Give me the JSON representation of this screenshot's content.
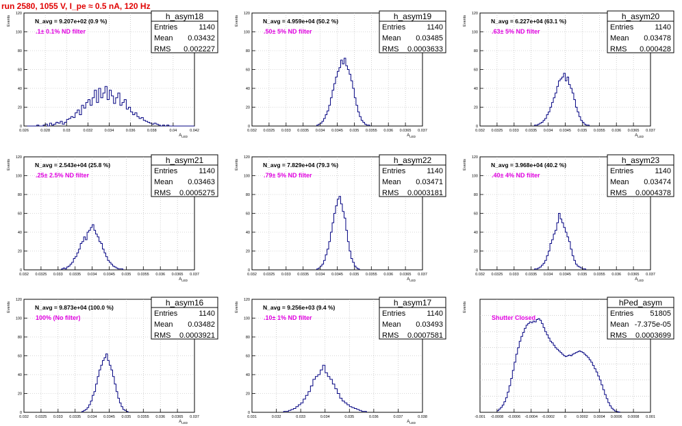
{
  "run_title": "run 2580,  1055 V, I_pe ≈ 0.5 nA, 120 Hz",
  "colors": {
    "title": "#e00000",
    "histogram": "#000080",
    "annotation": "#e000e0",
    "grid": "#b0b0b0",
    "frame": "#000000"
  },
  "chart_data": [
    {
      "type": "histogram",
      "title": "h_asym18",
      "ylabel": "Events",
      "xlabel": "A_LED",
      "grid": true,
      "xlim": [
        0.026,
        0.042
      ],
      "ylim": [
        0,
        120
      ],
      "xticks": [
        {
          "v": 0.026,
          "label": "0.026"
        },
        {
          "v": 0.028,
          "label": "0.028"
        },
        {
          "v": 0.03,
          "label": "0.03"
        },
        {
          "v": 0.032,
          "label": "0.032"
        },
        {
          "v": 0.034,
          "label": "0.034"
        },
        {
          "v": 0.036,
          "label": "0.036"
        },
        {
          "v": 0.038,
          "label": "0.038"
        },
        {
          "v": 0.04,
          "label": "0.04"
        },
        {
          "v": 0.042,
          "label": "0.042"
        }
      ],
      "yticks": [
        0,
        20,
        40,
        60,
        80,
        100,
        120
      ],
      "navg": "N_avg = 9.207e+02 (0.9 %)",
      "annotation": ".1± 0.1% ND filter",
      "stats": {
        "Entries": "1140",
        "Mean": "0.03432",
        "RMS": "0.002227"
      },
      "bins": {
        "start": 0.0262,
        "width": 0.0002,
        "values": [
          0,
          0,
          0,
          0,
          0,
          1,
          0,
          0,
          1,
          2,
          0,
          3,
          1,
          2,
          4,
          3,
          5,
          2,
          4,
          7,
          8,
          10,
          9,
          14,
          17,
          12,
          22,
          19,
          25,
          28,
          22,
          30,
          38,
          25,
          40,
          30,
          35,
          42,
          28,
          38,
          32,
          24,
          30,
          35,
          22,
          25,
          28,
          18,
          20,
          15,
          12,
          14,
          10,
          8,
          9,
          6,
          5,
          4,
          3,
          2,
          3,
          2,
          1,
          0,
          1,
          0,
          1,
          0,
          0,
          0,
          0,
          0,
          0,
          0,
          0,
          0,
          0,
          0,
          0
        ]
      }
    },
    {
      "type": "histogram",
      "title": "h_asym19",
      "ylabel": "Events",
      "xlabel": "A_LED",
      "grid": true,
      "xlim": [
        0.032,
        0.037
      ],
      "ylim": [
        0,
        120
      ],
      "xticks": [
        {
          "v": 0.032,
          "label": "0.032"
        },
        {
          "v": 0.0325,
          "label": "0.0325"
        },
        {
          "v": 0.033,
          "label": "0.033"
        },
        {
          "v": 0.0335,
          "label": "0.0335"
        },
        {
          "v": 0.034,
          "label": "0.034"
        },
        {
          "v": 0.0345,
          "label": "0.0345"
        },
        {
          "v": 0.035,
          "label": "0.035"
        },
        {
          "v": 0.0355,
          "label": "0.0355"
        },
        {
          "v": 0.036,
          "label": "0.036"
        },
        {
          "v": 0.0365,
          "label": "0.0365"
        },
        {
          "v": 0.037,
          "label": "0.037"
        }
      ],
      "yticks": [
        0,
        20,
        40,
        60,
        80,
        100,
        120
      ],
      "navg": "N_avg = 4.959e+04 (50.2 %)",
      "annotation": ".50± 5% ND filter",
      "stats": {
        "Entries": "1140",
        "Mean": "0.03485",
        "RMS": "0.0003633"
      },
      "bins": {
        "start": 0.0339,
        "width": 5e-05,
        "values": [
          1,
          2,
          3,
          5,
          8,
          12,
          16,
          22,
          30,
          38,
          45,
          52,
          58,
          62,
          70,
          66,
          72,
          64,
          60,
          55,
          48,
          40,
          30,
          22,
          15,
          10,
          6,
          4,
          2,
          1,
          1
        ]
      }
    },
    {
      "type": "histogram",
      "title": "h_asym20",
      "ylabel": "Events",
      "xlabel": "A_LED",
      "grid": true,
      "xlim": [
        0.032,
        0.037
      ],
      "ylim": [
        0,
        120
      ],
      "xticks": [
        {
          "v": 0.032,
          "label": "0.032"
        },
        {
          "v": 0.0325,
          "label": "0.0325"
        },
        {
          "v": 0.033,
          "label": "0.033"
        },
        {
          "v": 0.0335,
          "label": "0.0335"
        },
        {
          "v": 0.034,
          "label": "0.034"
        },
        {
          "v": 0.0345,
          "label": "0.0345"
        },
        {
          "v": 0.035,
          "label": "0.035"
        },
        {
          "v": 0.0355,
          "label": "0.0355"
        },
        {
          "v": 0.036,
          "label": "0.036"
        },
        {
          "v": 0.0365,
          "label": "0.0365"
        },
        {
          "v": 0.037,
          "label": "0.037"
        }
      ],
      "yticks": [
        0,
        20,
        40,
        60,
        80,
        100,
        120
      ],
      "navg": "N_avg = 6.227e+04 (63.1 %)",
      "annotation": ".63± 5% ND filter",
      "stats": {
        "Entries": "1140",
        "Mean": "0.03478",
        "RMS": "0.000428"
      },
      "bins": {
        "start": 0.0336,
        "width": 5e-05,
        "values": [
          1,
          1,
          2,
          3,
          4,
          6,
          8,
          12,
          15,
          20,
          25,
          30,
          35,
          42,
          48,
          50,
          52,
          56,
          48,
          52,
          44,
          40,
          35,
          28,
          20,
          15,
          10,
          6,
          4,
          2,
          1,
          1
        ]
      }
    },
    {
      "type": "histogram",
      "title": "h_asym21",
      "ylabel": "Events",
      "xlabel": "A_LED",
      "grid": true,
      "xlim": [
        0.032,
        0.037
      ],
      "ylim": [
        0,
        120
      ],
      "xticks": [
        {
          "v": 0.032,
          "label": "0.032"
        },
        {
          "v": 0.0325,
          "label": "0.0325"
        },
        {
          "v": 0.033,
          "label": "0.033"
        },
        {
          "v": 0.0335,
          "label": "0.0335"
        },
        {
          "v": 0.034,
          "label": "0.034"
        },
        {
          "v": 0.0345,
          "label": "0.0345"
        },
        {
          "v": 0.035,
          "label": "0.035"
        },
        {
          "v": 0.0355,
          "label": "0.0355"
        },
        {
          "v": 0.036,
          "label": "0.036"
        },
        {
          "v": 0.0365,
          "label": "0.0365"
        },
        {
          "v": 0.037,
          "label": "0.037"
        }
      ],
      "yticks": [
        0,
        20,
        40,
        60,
        80,
        100,
        120
      ],
      "navg": "N_avg = 2.543e+04 (25.8 %)",
      "annotation": ".25± 2.5% ND filter",
      "stats": {
        "Entries": "1140",
        "Mean": "0.03463",
        "RMS": "0.0005275"
      },
      "bins": {
        "start": 0.0331,
        "width": 5e-05,
        "values": [
          1,
          2,
          1,
          3,
          4,
          6,
          8,
          12,
          14,
          18,
          22,
          28,
          30,
          35,
          32,
          40,
          42,
          45,
          48,
          42,
          38,
          35,
          30,
          28,
          22,
          18,
          14,
          10,
          8,
          6,
          4,
          3,
          2,
          1,
          1,
          1
        ]
      }
    },
    {
      "type": "histogram",
      "title": "h_asym22",
      "ylabel": "Events",
      "xlabel": "A_LED",
      "grid": true,
      "xlim": [
        0.032,
        0.037
      ],
      "ylim": [
        0,
        120
      ],
      "xticks": [
        {
          "v": 0.032,
          "label": "0.032"
        },
        {
          "v": 0.0325,
          "label": "0.0325"
        },
        {
          "v": 0.033,
          "label": "0.033"
        },
        {
          "v": 0.0335,
          "label": "0.0335"
        },
        {
          "v": 0.034,
          "label": "0.034"
        },
        {
          "v": 0.0345,
          "label": "0.0345"
        },
        {
          "v": 0.035,
          "label": "0.035"
        },
        {
          "v": 0.0355,
          "label": "0.0355"
        },
        {
          "v": 0.036,
          "label": "0.036"
        },
        {
          "v": 0.0365,
          "label": "0.0365"
        },
        {
          "v": 0.037,
          "label": "0.037"
        }
      ],
      "yticks": [
        0,
        20,
        40,
        60,
        80,
        100,
        120
      ],
      "navg": "N_avg = 7.829e+04 (79.3 %)",
      "annotation": ".79± 5% ND filter",
      "stats": {
        "Entries": "1140",
        "Mean": "0.03471",
        "RMS": "0.0003181"
      },
      "bins": {
        "start": 0.0339,
        "width": 5e-05,
        "values": [
          1,
          2,
          4,
          6,
          10,
          16,
          22,
          30,
          40,
          50,
          60,
          68,
          75,
          78,
          70,
          62,
          55,
          42,
          30,
          20,
          12,
          8,
          4,
          2,
          1
        ]
      }
    },
    {
      "type": "histogram",
      "title": "h_asym23",
      "ylabel": "Events",
      "xlabel": "A_LED",
      "grid": true,
      "xlim": [
        0.032,
        0.037
      ],
      "ylim": [
        0,
        120
      ],
      "xticks": [
        {
          "v": 0.032,
          "label": "0.032"
        },
        {
          "v": 0.0325,
          "label": "0.0325"
        },
        {
          "v": 0.033,
          "label": "0.033"
        },
        {
          "v": 0.0335,
          "label": "0.0335"
        },
        {
          "v": 0.034,
          "label": "0.034"
        },
        {
          "v": 0.0345,
          "label": "0.0345"
        },
        {
          "v": 0.035,
          "label": "0.035"
        },
        {
          "v": 0.0355,
          "label": "0.0355"
        },
        {
          "v": 0.036,
          "label": "0.036"
        },
        {
          "v": 0.0365,
          "label": "0.0365"
        },
        {
          "v": 0.037,
          "label": "0.037"
        }
      ],
      "yticks": [
        0,
        20,
        40,
        60,
        80,
        100,
        120
      ],
      "navg": "N_avg = 3.968e+04 (40.2 %)",
      "annotation": ".40± 4% ND filter",
      "stats": {
        "Entries": "1140",
        "Mean": "0.03474",
        "RMS": "0.0004378"
      },
      "bins": {
        "start": 0.0336,
        "width": 5e-05,
        "values": [
          1,
          1,
          2,
          3,
          5,
          7,
          10,
          15,
          20,
          28,
          32,
          38,
          42,
          50,
          60,
          54,
          50,
          45,
          40,
          35,
          30,
          22,
          15,
          10,
          6,
          4,
          3,
          2,
          1,
          1
        ]
      }
    },
    {
      "type": "histogram",
      "title": "h_asym16",
      "ylabel": "Events",
      "xlabel": "A_LED",
      "grid": true,
      "xlim": [
        0.032,
        0.037
      ],
      "ylim": [
        0,
        120
      ],
      "xticks": [
        {
          "v": 0.032,
          "label": "0.032"
        },
        {
          "v": 0.0325,
          "label": "0.0325"
        },
        {
          "v": 0.033,
          "label": "0.033"
        },
        {
          "v": 0.0335,
          "label": "0.0335"
        },
        {
          "v": 0.034,
          "label": "0.034"
        },
        {
          "v": 0.0345,
          "label": "0.0345"
        },
        {
          "v": 0.035,
          "label": "0.035"
        },
        {
          "v": 0.0355,
          "label": "0.0355"
        },
        {
          "v": 0.036,
          "label": "0.036"
        },
        {
          "v": 0.0365,
          "label": "0.0365"
        },
        {
          "v": 0.037,
          "label": "0.037"
        }
      ],
      "yticks": [
        0,
        20,
        40,
        60,
        80,
        100,
        120
      ],
      "navg": "N_avg = 9.873e+04 (100.0 %)",
      "annotation": "100% (No filter)",
      "stats": {
        "Entries": "1140",
        "Mean": "0.03482",
        "RMS": "0.0003921"
      },
      "bins": {
        "start": 0.0337,
        "width": 5e-05,
        "values": [
          1,
          2,
          3,
          5,
          8,
          12,
          18,
          22,
          30,
          38,
          45,
          50,
          55,
          58,
          62,
          55,
          50,
          45,
          38,
          30,
          22,
          15,
          10,
          6,
          3,
          2,
          1
        ]
      }
    },
    {
      "type": "histogram",
      "title": "h_asym17",
      "ylabel": "Events",
      "xlabel": "A_LED",
      "grid": true,
      "xlim": [
        0.031,
        0.038
      ],
      "ylim": [
        0,
        120
      ],
      "xticks": [
        {
          "v": 0.031,
          "label": "0.031"
        },
        {
          "v": 0.032,
          "label": "0.032"
        },
        {
          "v": 0.033,
          "label": "0.033"
        },
        {
          "v": 0.034,
          "label": "0.034"
        },
        {
          "v": 0.035,
          "label": "0.035"
        },
        {
          "v": 0.036,
          "label": "0.036"
        },
        {
          "v": 0.037,
          "label": "0.037"
        },
        {
          "v": 0.038,
          "label": "0.038"
        }
      ],
      "yticks": [
        0,
        20,
        40,
        60,
        80,
        100,
        120
      ],
      "navg": "N_avg = 9.256e+03 (9.4 %)",
      "annotation": ".10± 1% ND filter",
      "stats": {
        "Entries": "1140",
        "Mean": "0.03493",
        "RMS": "0.0007581"
      },
      "bins": {
        "start": 0.0323,
        "width": 0.0001,
        "values": [
          1,
          1,
          2,
          3,
          4,
          6,
          8,
          10,
          14,
          18,
          22,
          28,
          35,
          38,
          40,
          45,
          50,
          42,
          38,
          35,
          30,
          25,
          20,
          15,
          12,
          10,
          8,
          6,
          5,
          4,
          3,
          2,
          1,
          1
        ]
      }
    },
    {
      "type": "histogram",
      "title": "hPed_asym",
      "ylabel": "Events",
      "xlabel": "",
      "grid": true,
      "xlim": [
        -0.001,
        0.001
      ],
      "ylim": [
        0,
        1400
      ],
      "xticks": [
        {
          "v": -0.001,
          "label": "-0.001"
        },
        {
          "v": -0.0008,
          "label": "-0.0008"
        },
        {
          "v": -0.0006,
          "label": "-0.0006"
        },
        {
          "v": -0.0004,
          "label": "-0.0004"
        },
        {
          "v": -0.0002,
          "label": "-0.0002"
        },
        {
          "v": 0,
          "label": "0"
        },
        {
          "v": 0.0002,
          "label": "0.0002"
        },
        {
          "v": 0.0004,
          "label": "0.0004"
        },
        {
          "v": 0.0006,
          "label": "0.0006"
        },
        {
          "v": 0.0008,
          "label": "0.0008"
        },
        {
          "v": 0.001,
          "label": "0.001"
        }
      ],
      "yticks": [],
      "navg": "",
      "annotation": "Shutter Closed",
      "stats": {
        "Entries": "51805",
        "Mean": "-7.375e-05",
        "RMS": "0.0003699"
      },
      "bins": {
        "start": -0.0008,
        "width": 2e-05,
        "values": [
          20,
          40,
          60,
          90,
          130,
          180,
          250,
          330,
          420,
          520,
          620,
          720,
          800,
          880,
          940,
          990,
          1040,
          1080,
          1100,
          1120,
          1110,
          1130,
          1120,
          1150,
          1160,
          1140,
          1100,
          1050,
          1000,
          960,
          920,
          880,
          860,
          830,
          800,
          780,
          760,
          740,
          720,
          700,
          690,
          700,
          710,
          700,
          720,
          730,
          740,
          750,
          760,
          750,
          740,
          720,
          700,
          680,
          650,
          620,
          580,
          540,
          500,
          450,
          400,
          340,
          280,
          220,
          170,
          120,
          80,
          50,
          30,
          15,
          8,
          4
        ]
      }
    }
  ]
}
